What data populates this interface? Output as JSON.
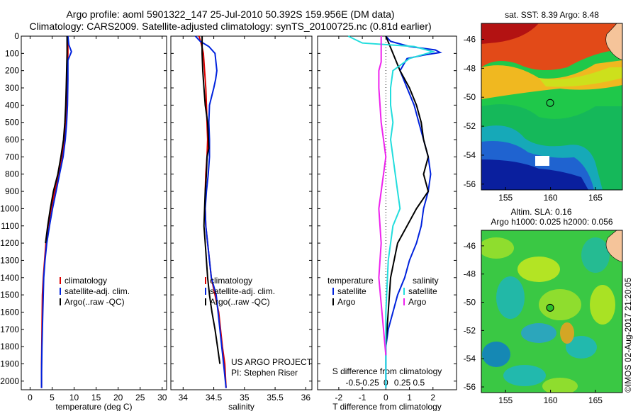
{
  "header": {
    "line1": "Argo profile: aoml 5901322_147 25-Jul-2010 50.392S 159.956E (DM data)",
    "line2": "Climatology: CARS2009. Satellite-adjusted climatology: synTS_20100725.nc (0.81d earlier)"
  },
  "chart_data": [
    {
      "type": "line",
      "id": "temperature-profile",
      "xlabel": "temperature (deg C)",
      "ylabel": "",
      "xlim": [
        -2,
        31
      ],
      "ylim": [
        2050,
        0
      ],
      "xticks": [
        0,
        5,
        10,
        15,
        20,
        25,
        30
      ],
      "yticks": [
        0,
        100,
        200,
        300,
        400,
        500,
        600,
        700,
        800,
        900,
        1000,
        1100,
        1200,
        1300,
        1400,
        1500,
        1600,
        1700,
        1800,
        1900,
        2000
      ],
      "legend": [
        "climatology",
        "satellite-adj. clim.",
        "Argo(..raw -QC)"
      ],
      "legend_position": "lower-right",
      "series": [
        {
          "name": "climatology",
          "color": "#dd0000",
          "x": [
            8.6,
            8.6,
            8.5,
            8.4,
            8.3,
            8.1,
            7.8,
            7.3,
            6.6,
            5.6,
            4.8,
            4.1,
            3.6,
            3.3,
            3.0,
            2.8,
            2.7,
            2.6,
            2.6
          ],
          "y": [
            0,
            100,
            200,
            300,
            400,
            500,
            600,
            700,
            800,
            900,
            1000,
            1100,
            1200,
            1300,
            1400,
            1500,
            1700,
            1900,
            2040
          ]
        },
        {
          "name": "satellite-adj. clim.",
          "color": "#0022dd",
          "x": [
            8.6,
            8.8,
            9.4,
            8.6,
            8.6,
            8.5,
            8.3,
            8.0,
            7.5,
            6.7,
            5.9,
            5.1,
            4.4,
            3.8,
            3.4,
            3.1,
            2.9,
            2.7,
            2.6,
            2.6
          ],
          "y": [
            0,
            50,
            90,
            140,
            250,
            400,
            500,
            600,
            700,
            800,
            900,
            1000,
            1100,
            1200,
            1300,
            1400,
            1600,
            1800,
            1950,
            2040
          ]
        },
        {
          "name": "Argo(..raw -QC)",
          "color": "#000000",
          "x": [
            8.4,
            8.4,
            8.3,
            8.2,
            8.1,
            7.9,
            7.6,
            7.0,
            6.3,
            5.3,
            4.6,
            4.0,
            3.5
          ],
          "y": [
            0,
            100,
            200,
            300,
            400,
            500,
            600,
            700,
            800,
            900,
            1000,
            1100,
            1200
          ]
        }
      ]
    },
    {
      "type": "line",
      "id": "salinity-profile",
      "xlabel": "salinity",
      "ylabel": "",
      "xlim": [
        33.8,
        36.1
      ],
      "ylim": [
        2050,
        0
      ],
      "xticks": [
        34,
        34.5,
        35,
        35.5,
        36
      ],
      "legend": [
        "climatology",
        "satellite-adj. clim.",
        "Argo(..raw -QC)"
      ],
      "legend_position": "lower-right",
      "annotation": [
        "US ARGO PROJECT",
        "PI: Stephen Riser"
      ],
      "series": [
        {
          "name": "climatology",
          "color": "#dd0000",
          "x": [
            34.26,
            34.3,
            34.33,
            34.35,
            34.37,
            34.38,
            34.39,
            34.4,
            34.39,
            34.37,
            34.36,
            34.36,
            34.37,
            34.4,
            34.46,
            34.52,
            34.58,
            34.64,
            34.68,
            34.7
          ],
          "y": [
            0,
            50,
            100,
            200,
            300,
            400,
            500,
            600,
            700,
            800,
            900,
            1000,
            1100,
            1200,
            1400,
            1500,
            1600,
            1800,
            1900,
            2040
          ]
        },
        {
          "name": "satellite-adj. clim.",
          "color": "#0022dd",
          "x": [
            34.2,
            34.28,
            34.42,
            34.52,
            34.55,
            34.53,
            34.5,
            34.43,
            34.42,
            34.43,
            34.43,
            34.41,
            34.38,
            34.36,
            34.37,
            34.4,
            34.46,
            34.54,
            34.6,
            34.66,
            34.7
          ],
          "y": [
            0,
            30,
            60,
            100,
            200,
            250,
            300,
            400,
            500,
            600,
            700,
            800,
            900,
            1000,
            1100,
            1200,
            1400,
            1500,
            1700,
            1900,
            2040
          ]
        },
        {
          "name": "Argo(..raw -QC)",
          "color": "#000000",
          "x": [
            34.31,
            34.31,
            34.32,
            34.34,
            34.36,
            34.4,
            34.42,
            34.39,
            34.38,
            34.36,
            34.35,
            34.34,
            34.36,
            34.38,
            34.4,
            34.43,
            34.47,
            34.52,
            34.56,
            34.6
          ],
          "y": [
            0,
            100,
            200,
            300,
            400,
            500,
            650,
            700,
            800,
            900,
            1000,
            1100,
            1200,
            1300,
            1400,
            1500,
            1600,
            1700,
            1800,
            1900
          ]
        }
      ]
    },
    {
      "type": "line",
      "id": "difference-profile",
      "xlabel": "T difference from climatology",
      "xlabel_top": "S difference from climatology",
      "xlim": [
        -2.9,
        3.0
      ],
      "ylim": [
        2050,
        0
      ],
      "xticks": [
        -2,
        -1,
        0,
        1,
        2
      ],
      "xticks_s": [
        "-0.5",
        "-0.25",
        "0",
        "0.25",
        "0.5"
      ],
      "legend_groups": [
        {
          "title": "temperature",
          "entries": [
            {
              "name": "satellite",
              "color": "#0022dd"
            },
            {
              "name": "Argo",
              "color": "#000000"
            }
          ]
        },
        {
          "title": "salinity",
          "entries": [
            {
              "name": "satellite",
              "color": "#22dddd"
            },
            {
              "name": "Argo",
              "color": "#ee22ee"
            }
          ]
        }
      ],
      "series": [
        {
          "name": "temperature satellite",
          "color": "#0022dd",
          "x": [
            0.0,
            0.2,
            1.0,
            2.1,
            2.3,
            1.6,
            0.9,
            0.6,
            0.9,
            1.2,
            1.4,
            1.6,
            1.8,
            1.9,
            1.8,
            1.6,
            1.5,
            1.3,
            1.0,
            0.8,
            0.5,
            0.3,
            0.1,
            0.0,
            0.0
          ],
          "y": [
            0,
            30,
            60,
            80,
            95,
            110,
            130,
            200,
            300,
            400,
            500,
            600,
            700,
            800,
            900,
            1000,
            1100,
            1200,
            1300,
            1400,
            1500,
            1600,
            1700,
            1800,
            2040
          ]
        },
        {
          "name": "temperature Argo",
          "color": "#000000",
          "x": [
            0.0,
            0.3,
            0.6,
            1.0,
            1.3,
            1.5,
            1.6,
            1.8,
            1.6,
            1.8,
            1.3,
            0.9,
            0.5,
            0.2,
            0.0
          ],
          "y": [
            0,
            100,
            200,
            300,
            400,
            500,
            600,
            700,
            800,
            900,
            1000,
            1100,
            1200,
            1400,
            1800
          ]
        },
        {
          "name": "salinity satellite",
          "color": "#22dddd",
          "x": [
            -1.6,
            -1.0,
            1.2,
            2.0,
            1.0,
            0.3,
            0.2,
            0.2,
            0.3,
            0.2,
            0.3,
            0.4,
            0.5,
            0.6,
            0.3,
            0.1,
            0.0,
            0.0
          ],
          "y": [
            0,
            40,
            60,
            90,
            130,
            200,
            300,
            400,
            500,
            600,
            700,
            800,
            900,
            1000,
            1100,
            1300,
            1600,
            2040
          ]
        },
        {
          "name": "salinity Argo",
          "color": "#ee22ee",
          "x": [
            -0.2,
            -0.2,
            -0.2,
            -0.3,
            -0.3,
            -0.2,
            -0.1,
            0.0,
            -0.1,
            -0.2,
            -0.3,
            -0.2,
            -0.3,
            -0.1,
            0.0
          ],
          "y": [
            0,
            100,
            150,
            200,
            300,
            500,
            600,
            700,
            800,
            900,
            1000,
            1200,
            1400,
            1700,
            1850
          ]
        }
      ]
    },
    {
      "type": "heatmap",
      "id": "sst-map",
      "title": "sat. SST: 8.39 Argo: 8.48",
      "xlim": [
        152.3,
        168.0
      ],
      "ylim": [
        -56.4,
        -44.9
      ],
      "xticks": [
        155,
        160,
        165
      ],
      "yticks": [
        -46,
        -48,
        -50,
        -52,
        -54,
        -56
      ],
      "marker": {
        "lon": 159.956,
        "lat": -50.392
      }
    },
    {
      "type": "heatmap",
      "id": "sla-map",
      "title_line1": "Altim. SLA: 0.16",
      "title_line2": "Argo h1000: 0.025 h2000: 0.056",
      "xlim": [
        152.3,
        168.0
      ],
      "ylim": [
        -56.4,
        -44.9
      ],
      "xticks": [
        155,
        160,
        165
      ],
      "yticks": [
        -46,
        -48,
        -50,
        -52,
        -54,
        -56
      ],
      "marker": {
        "lon": 159.956,
        "lat": -50.392
      },
      "side_text": "©IMOS 02-Aug-2017 21:20:05"
    }
  ]
}
